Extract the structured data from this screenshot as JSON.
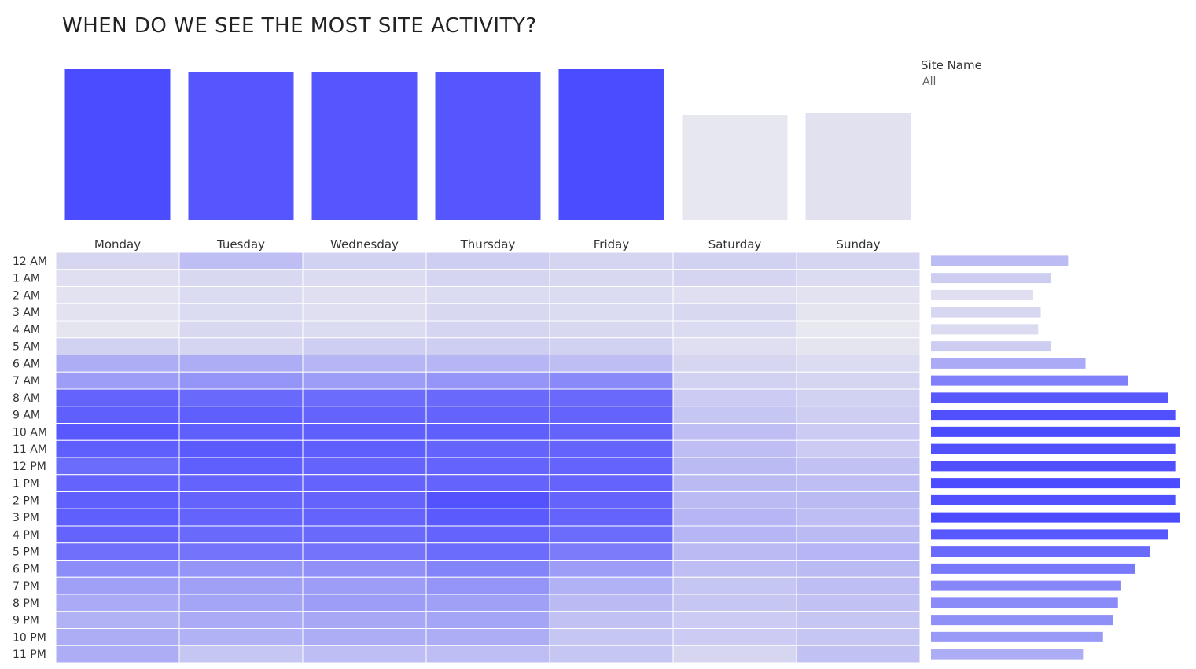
{
  "title": "WHEN DO WE SEE THE MOST SITE ACTIVITY?",
  "filter": {
    "label": "Site Name",
    "value": "All"
  },
  "colors": {
    "low": "#efefef",
    "high": "#4b4bff",
    "gridline": "#ffffff"
  },
  "chart_data": [
    {
      "type": "bar",
      "name": "daily-activity",
      "categories": [
        "Monday",
        "Tuesday",
        "Wednesday",
        "Thursday",
        "Friday",
        "Saturday",
        "Sunday"
      ],
      "values": [
        96,
        94,
        94,
        94,
        96,
        67,
        68
      ],
      "ylim": [
        0,
        100
      ],
      "title": "",
      "xlabel": "",
      "ylabel": ""
    },
    {
      "type": "heatmap",
      "name": "hour-by-day",
      "x": [
        "Monday",
        "Tuesday",
        "Wednesday",
        "Thursday",
        "Friday",
        "Saturday",
        "Sunday"
      ],
      "y": [
        "12 AM",
        "1 AM",
        "2 AM",
        "3 AM",
        "4 AM",
        "5 AM",
        "6 AM",
        "7 AM",
        "8 AM",
        "9 AM",
        "10 AM",
        "11 AM",
        "12 PM",
        "1 PM",
        "2 PM",
        "3 PM",
        "4 PM",
        "5 PM",
        "6 PM",
        "7 PM",
        "8 PM",
        "9 PM",
        "10 PM",
        "11 PM"
      ],
      "values": [
        [
          15,
          30,
          18,
          20,
          16,
          18,
          16
        ],
        [
          10,
          14,
          12,
          16,
          14,
          16,
          12
        ],
        [
          8,
          12,
          10,
          12,
          12,
          10,
          8
        ],
        [
          8,
          12,
          10,
          14,
          12,
          14,
          6
        ],
        [
          6,
          14,
          12,
          16,
          14,
          12,
          4
        ],
        [
          18,
          16,
          20,
          20,
          18,
          10,
          6
        ],
        [
          40,
          40,
          35,
          35,
          30,
          15,
          12
        ],
        [
          50,
          55,
          50,
          55,
          62,
          18,
          16
        ],
        [
          85,
          82,
          80,
          82,
          82,
          22,
          18
        ],
        [
          88,
          88,
          85,
          85,
          85,
          25,
          20
        ],
        [
          92,
          88,
          88,
          88,
          85,
          30,
          22
        ],
        [
          88,
          90,
          88,
          85,
          85,
          30,
          22
        ],
        [
          80,
          88,
          85,
          85,
          85,
          32,
          28
        ],
        [
          85,
          85,
          85,
          85,
          85,
          32,
          30
        ],
        [
          88,
          85,
          85,
          95,
          85,
          32,
          32
        ],
        [
          88,
          85,
          85,
          90,
          85,
          35,
          30
        ],
        [
          85,
          82,
          82,
          85,
          80,
          35,
          32
        ],
        [
          78,
          75,
          75,
          80,
          70,
          32,
          35
        ],
        [
          60,
          55,
          58,
          65,
          50,
          30,
          32
        ],
        [
          48,
          48,
          50,
          55,
          38,
          25,
          30
        ],
        [
          42,
          45,
          50,
          48,
          32,
          25,
          28
        ],
        [
          38,
          42,
          44,
          45,
          28,
          22,
          25
        ],
        [
          40,
          38,
          40,
          40,
          25,
          22,
          25
        ],
        [
          40,
          25,
          30,
          30,
          25,
          15,
          28
        ]
      ],
      "zlim": [
        0,
        100
      ]
    },
    {
      "type": "bar",
      "name": "hourly-activity",
      "orientation": "horizontal",
      "categories": [
        "12 AM",
        "1 AM",
        "2 AM",
        "3 AM",
        "4 AM",
        "5 AM",
        "6 AM",
        "7 AM",
        "8 AM",
        "9 AM",
        "10 AM",
        "11 AM",
        "12 PM",
        "1 PM",
        "2 PM",
        "3 PM",
        "4 PM",
        "5 PM",
        "6 PM",
        "7 PM",
        "8 PM",
        "9 PM",
        "10 PM",
        "11 PM"
      ],
      "values": [
        55,
        48,
        41,
        44,
        43,
        48,
        62,
        79,
        95,
        98,
        100,
        98,
        98,
        100,
        98,
        100,
        95,
        88,
        82,
        76,
        75,
        73,
        69,
        61
      ],
      "xlim": [
        0,
        100
      ]
    }
  ]
}
